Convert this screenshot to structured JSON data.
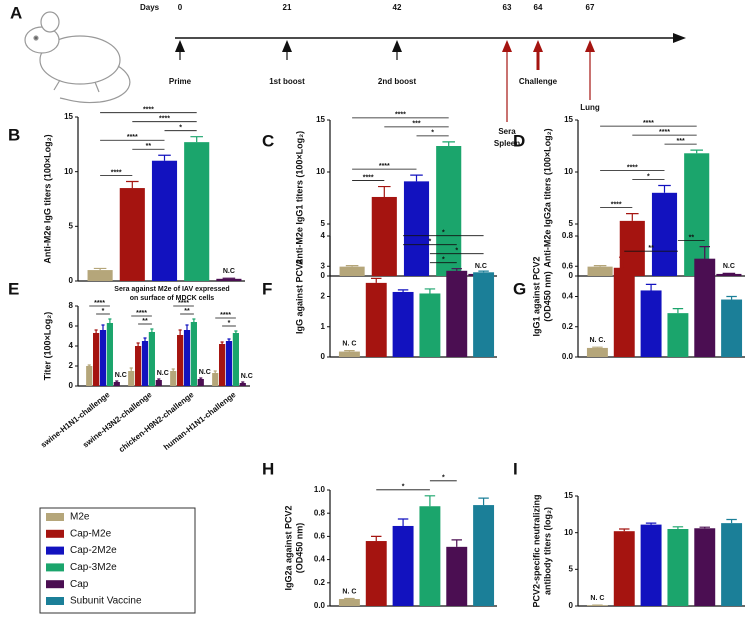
{
  "timeline": {
    "panel": "A",
    "axis_label": "Days",
    "events": [
      {
        "day": 0,
        "label": [
          "Prime"
        ]
      },
      {
        "day": 21,
        "label": [
          "1st boost"
        ]
      },
      {
        "day": 42,
        "label": [
          "2nd boost"
        ]
      },
      {
        "day": 63,
        "label": [
          "Sera",
          "Spleen"
        ]
      },
      {
        "day": 64,
        "label": [
          "Challenge"
        ]
      },
      {
        "day": 67,
        "label": [
          "Lung"
        ]
      }
    ]
  },
  "legend": [
    {
      "name": "M2e",
      "color": "#b5a67a"
    },
    {
      "name": "Cap-M2e",
      "color": "#a51410"
    },
    {
      "name": "Cap-2M2e",
      "color": "#1212bf"
    },
    {
      "name": "Cap-3M2e",
      "color": "#1ba56c"
    },
    {
      "name": "Cap",
      "color": "#4b0e52"
    },
    {
      "name": "Subunit Vaccine",
      "color": "#1b7f98"
    }
  ],
  "chart_data": [
    {
      "type": "bar",
      "panel": "B",
      "y_label": [
        "Anti-M2e IgG titers (100×Log₂)"
      ],
      "values": [
        1.0,
        8.5,
        11.0,
        12.7,
        0.2
      ],
      "errors": [
        0.15,
        0.6,
        0.5,
        0.5,
        0.05
      ],
      "ylim": [
        0,
        15
      ],
      "yticks": [
        0,
        5,
        10,
        15
      ],
      "annotations": [
        {
          "bar": 4,
          "text": "N.C"
        }
      ],
      "significance": [
        {
          "from": 0,
          "to": 1,
          "label": "****"
        },
        {
          "from": 1,
          "to": 2,
          "label": "**"
        },
        {
          "from": 0,
          "to": 2,
          "label": "****"
        },
        {
          "from": 2,
          "to": 3,
          "label": "*"
        },
        {
          "from": 1,
          "to": 3,
          "label": "****"
        },
        {
          "from": 0,
          "to": 3,
          "label": "****"
        }
      ]
    },
    {
      "type": "bar",
      "panel": "C",
      "y_label": [
        "Anti-M2e IgG1 titers (100×Log₂)"
      ],
      "values": [
        0.9,
        7.6,
        9.1,
        12.5,
        0.2
      ],
      "errors": [
        0.1,
        1.0,
        0.6,
        0.4,
        0.05
      ],
      "ylim": [
        0,
        15
      ],
      "yticks": [
        0,
        5,
        10,
        15
      ],
      "annotations": [
        {
          "bar": 4,
          "text": "N.C"
        }
      ],
      "significance": [
        {
          "from": 0,
          "to": 1,
          "label": "****"
        },
        {
          "from": 0,
          "to": 2,
          "label": "****"
        },
        {
          "from": 2,
          "to": 3,
          "label": "*"
        },
        {
          "from": 1,
          "to": 3,
          "label": "***"
        },
        {
          "from": 0,
          "to": 3,
          "label": "****"
        }
      ]
    },
    {
      "type": "bar",
      "panel": "D",
      "y_label": [
        "Anti-M2e IgG2a titers (100×Log₂)"
      ],
      "values": [
        0.9,
        5.3,
        8.0,
        11.8,
        0.2
      ],
      "errors": [
        0.1,
        0.7,
        0.7,
        0.3,
        0.05
      ],
      "ylim": [
        0,
        15
      ],
      "yticks": [
        0,
        5,
        10,
        15
      ],
      "annotations": [
        {
          "bar": 4,
          "text": "N.C"
        }
      ],
      "significance": [
        {
          "from": 0,
          "to": 1,
          "label": "****"
        },
        {
          "from": 1,
          "to": 2,
          "label": "*"
        },
        {
          "from": 0,
          "to": 2,
          "label": "****"
        },
        {
          "from": 2,
          "to": 3,
          "label": "***"
        },
        {
          "from": 1,
          "to": 3,
          "label": "****"
        },
        {
          "from": 0,
          "to": 3,
          "label": "****"
        }
      ]
    },
    {
      "type": "grouped_bar",
      "panel": "E",
      "title": [
        "Sera against M2e of IAV expressed",
        "on surface of MDCK cells"
      ],
      "y_label": [
        "Titer (100×Log₂)"
      ],
      "categories": [
        "swine-H1N1-challenge",
        "swine-H3N2-challenge",
        "chicken-H9N2-challenge",
        "human-H1N1-challenge"
      ],
      "series": [
        {
          "values": [
            2.0,
            1.5,
            1.5,
            1.3
          ],
          "errors": [
            0.1,
            0.3,
            0.2,
            0.2
          ]
        },
        {
          "values": [
            5.3,
            4.0,
            5.1,
            4.2
          ],
          "errors": [
            0.3,
            0.3,
            0.5,
            0.2
          ]
        },
        {
          "values": [
            5.6,
            4.5,
            5.6,
            4.5
          ],
          "errors": [
            0.5,
            0.3,
            0.5,
            0.2
          ]
        },
        {
          "values": [
            6.3,
            5.4,
            6.4,
            5.3
          ],
          "errors": [
            0.4,
            0.3,
            0.3,
            0.2
          ]
        },
        {
          "values": [
            0.4,
            0.6,
            0.7,
            0.3
          ],
          "errors": [
            0.1,
            0.1,
            0.1,
            0.1
          ]
        }
      ],
      "ylim": [
        0,
        8
      ],
      "yticks": [
        0,
        2,
        4,
        6,
        8
      ],
      "annotations": [
        {
          "category": 0,
          "series": 4,
          "text": "N.C"
        },
        {
          "category": 1,
          "series": 4,
          "text": "N.C"
        },
        {
          "category": 2,
          "series": 4,
          "text": "N.C"
        },
        {
          "category": 3,
          "series": 4,
          "text": "N.C"
        }
      ],
      "significance": [
        [
          {
            "from": 1,
            "to": 3,
            "label": "*"
          },
          {
            "from": 0,
            "to": 3,
            "label": "****"
          }
        ],
        [
          {
            "from": 1,
            "to": 3,
            "label": "**"
          },
          {
            "from": 0,
            "to": 3,
            "label": "****"
          }
        ],
        [
          {
            "from": 1,
            "to": 3,
            "label": "**"
          },
          {
            "from": 0,
            "to": 3,
            "label": "****"
          }
        ],
        [
          {
            "from": 1,
            "to": 3,
            "label": "*"
          },
          {
            "from": 0,
            "to": 3,
            "label": "****"
          }
        ]
      ]
    },
    {
      "type": "bar",
      "panel": "F",
      "y_label": [
        "IgG against PCV2"
      ],
      "values": [
        0.18,
        2.45,
        2.15,
        2.1,
        2.85,
        2.8
      ],
      "errors": [
        0.03,
        0.15,
        0.07,
        0.15,
        0.07,
        0.04
      ],
      "ylim": [
        0,
        4
      ],
      "yticks": [
        0,
        1,
        2,
        3,
        4
      ],
      "annotations": [
        {
          "bar": 0,
          "text": "N. C"
        }
      ],
      "significance": [
        {
          "from": 3,
          "to": 4,
          "label": "*"
        },
        {
          "from": 3,
          "to": 5,
          "label": "*"
        },
        {
          "from": 2,
          "to": 4,
          "label": "*"
        },
        {
          "from": 2,
          "to": 5,
          "label": "*"
        }
      ]
    },
    {
      "type": "bar",
      "panel": "G",
      "y_label": [
        "IgG1 against PCV2",
        "(OD450 nm)"
      ],
      "values": [
        0.06,
        0.59,
        0.44,
        0.29,
        0.65,
        0.38
      ],
      "errors": [
        0.005,
        0.07,
        0.04,
        0.03,
        0.08,
        0.02
      ],
      "ylim": [
        0,
        0.8
      ],
      "yticks": [
        {
          "value": 0,
          "label": "0.0"
        },
        0.2,
        0.4,
        0.6,
        0.8
      ],
      "annotations": [
        {
          "bar": 0,
          "text": "N. C."
        }
      ],
      "significance": [
        {
          "from": 1,
          "to": 3,
          "label": "**"
        },
        {
          "from": 3,
          "to": 4,
          "label": "**"
        }
      ]
    },
    {
      "type": "bar",
      "panel": "H",
      "y_label": [
        "IgG2a against PCV2",
        "(OD450 nm)"
      ],
      "values": [
        0.06,
        0.56,
        0.69,
        0.86,
        0.51,
        0.87
      ],
      "errors": [
        0.005,
        0.04,
        0.06,
        0.09,
        0.06,
        0.06
      ],
      "ylim": [
        0,
        1
      ],
      "yticks": [
        {
          "value": 0,
          "label": "0.0"
        },
        0.2,
        0.4,
        0.6,
        0.8,
        {
          "value": 1,
          "label": "1.0"
        }
      ],
      "annotations": [
        {
          "bar": 0,
          "text": "N. C"
        }
      ],
      "significance": [
        {
          "from": 1,
          "to": 3,
          "label": "*"
        },
        {
          "from": 3,
          "to": 4,
          "label": "*"
        }
      ]
    },
    {
      "type": "bar",
      "panel": "I",
      "y_label": [
        "PCV2-specific neutralizing",
        "antibody titers (log₂)"
      ],
      "values": [
        0.1,
        10.2,
        11.1,
        10.5,
        10.6,
        11.3
      ],
      "errors": [
        0.02,
        0.3,
        0.2,
        0.3,
        0.15,
        0.5
      ],
      "ylim": [
        0,
        15
      ],
      "yticks": [
        0,
        5,
        10,
        15
      ],
      "annotations": [
        {
          "bar": 0,
          "text": "N. C"
        }
      ],
      "significance": []
    }
  ]
}
